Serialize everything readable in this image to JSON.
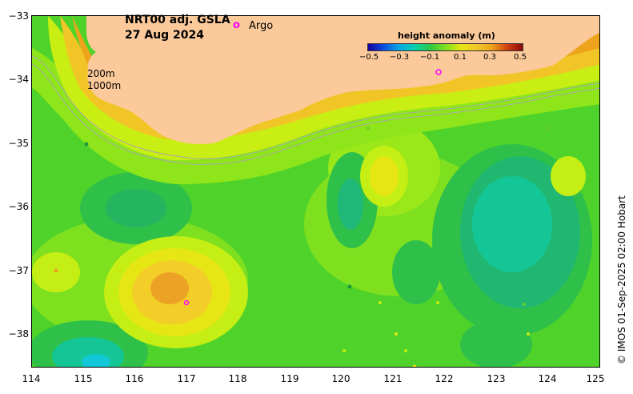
{
  "title": {
    "product": "NRT00 adj. GSLA",
    "date": "27 Aug 2024"
  },
  "legend": {
    "argo_marker": "o",
    "argo_label": "Argo",
    "isobath_200": "200m",
    "isobath_1000": "1000m"
  },
  "colorbar": {
    "title": "height anomaly (m)",
    "ticks": [
      "−0.5",
      "−0.3",
      "−0.1",
      "0.1",
      "0.3",
      "0.5"
    ]
  },
  "axes": {
    "x_ticks": [
      "114",
      "115",
      "116",
      "117",
      "118",
      "119",
      "120",
      "121",
      "122",
      "123",
      "124",
      "125"
    ],
    "y_ticks": [
      "−33",
      "−34",
      "−35",
      "−36",
      "−37",
      "−38"
    ]
  },
  "credit": "© IMOS 01-Sep-2025 02:00 Hobart",
  "colors": {
    "land": "#fbc99a",
    "argo": "#ff00ff"
  }
}
